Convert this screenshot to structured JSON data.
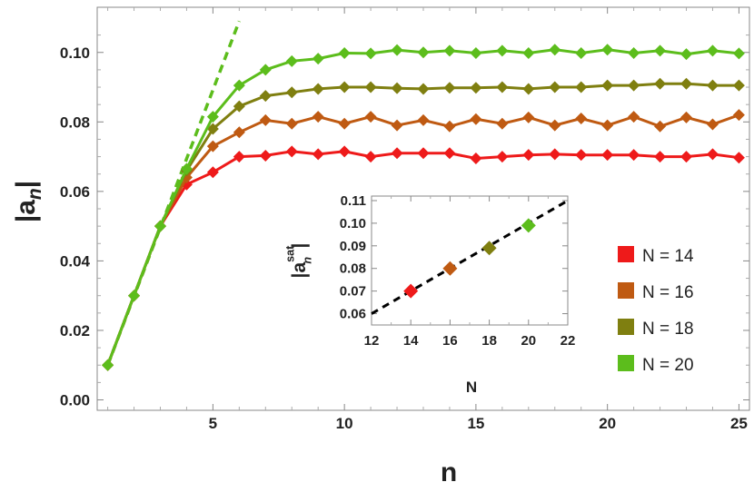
{
  "chart_data": {
    "type": "line",
    "main": {
      "xlabel": "n",
      "ylabel_base": "|a",
      "ylabel_sub": "n",
      "ylabel_close": "|",
      "xlim": [
        0.6,
        25.4
      ],
      "ylim": [
        -0.003,
        0.113
      ],
      "xticks": [
        5,
        10,
        15,
        20,
        25
      ],
      "yticks": [
        0.0,
        0.02,
        0.04,
        0.06,
        0.08,
        0.1
      ],
      "ytick_labels": [
        "0.00",
        "0.02",
        "0.04",
        "0.06",
        "0.08",
        "0.10"
      ],
      "series": [
        {
          "name": "N = 14",
          "color": "#ee1a1a",
          "x": [
            1,
            2,
            3,
            4,
            5,
            6,
            7,
            8,
            9,
            10,
            11,
            12,
            13,
            14,
            15,
            16,
            17,
            18,
            19,
            20,
            21,
            22,
            23,
            24,
            25
          ],
          "y": [
            0.01,
            0.03,
            0.05,
            0.062,
            0.0655,
            0.07,
            0.0703,
            0.0715,
            0.0707,
            0.0715,
            0.07,
            0.071,
            0.071,
            0.071,
            0.0695,
            0.07,
            0.0705,
            0.0707,
            0.0705,
            0.0705,
            0.0705,
            0.07,
            0.07,
            0.0707,
            0.0697
          ]
        },
        {
          "name": "N = 16",
          "color": "#bf5a12",
          "x": [
            1,
            2,
            3,
            4,
            5,
            6,
            7,
            8,
            9,
            10,
            11,
            12,
            13,
            14,
            15,
            16,
            17,
            18,
            19,
            20,
            21,
            22,
            23,
            24,
            25
          ],
          "y": [
            0.01,
            0.03,
            0.05,
            0.064,
            0.073,
            0.077,
            0.0805,
            0.0795,
            0.0815,
            0.0795,
            0.0815,
            0.079,
            0.0805,
            0.0787,
            0.0808,
            0.0795,
            0.0813,
            0.079,
            0.081,
            0.079,
            0.0815,
            0.0787,
            0.0813,
            0.0793,
            0.082
          ]
        },
        {
          "name": "N = 18",
          "color": "#7f7f10",
          "x": [
            1,
            2,
            3,
            4,
            5,
            6,
            7,
            8,
            9,
            10,
            11,
            12,
            13,
            14,
            15,
            16,
            17,
            18,
            19,
            20,
            21,
            22,
            23,
            24,
            25
          ],
          "y": [
            0.01,
            0.03,
            0.05,
            0.066,
            0.078,
            0.0845,
            0.0875,
            0.0885,
            0.0895,
            0.09,
            0.09,
            0.0897,
            0.0895,
            0.0898,
            0.0898,
            0.09,
            0.0895,
            0.09,
            0.09,
            0.0905,
            0.0905,
            0.091,
            0.091,
            0.0905,
            0.0905
          ]
        },
        {
          "name": "N = 20",
          "color": "#5cbd1c",
          "x": [
            1,
            2,
            3,
            4,
            5,
            6,
            7,
            8,
            9,
            10,
            11,
            12,
            13,
            14,
            15,
            16,
            17,
            18,
            19,
            20,
            21,
            22,
            23,
            24,
            25
          ],
          "y": [
            0.01,
            0.03,
            0.05,
            0.0665,
            0.0815,
            0.0905,
            0.095,
            0.0975,
            0.0982,
            0.0998,
            0.0997,
            0.1007,
            0.1,
            0.1005,
            0.0998,
            0.1005,
            0.0998,
            0.1008,
            0.0998,
            0.1008,
            0.0998,
            0.1005,
            0.0995,
            0.1005,
            0.0997
          ]
        }
      ],
      "guide_line": {
        "style": "dashed",
        "color": "#5cbd1c",
        "x": [
          1,
          6
        ],
        "y": [
          0.01,
          0.109
        ]
      }
    },
    "inset": {
      "xlabel": "N",
      "ylabel_base": "|a",
      "ylabel_sub": "n",
      "ylabel_sup": "sat",
      "ylabel_close": "|",
      "xlim": [
        12,
        22
      ],
      "ylim": [
        0.055,
        0.112
      ],
      "xticks": [
        12,
        14,
        16,
        18,
        20,
        22
      ],
      "yticks": [
        0.06,
        0.07,
        0.08,
        0.09,
        0.1,
        0.11
      ],
      "ytick_labels": [
        "0.06",
        "0.07",
        "0.08",
        "0.09",
        "0.10",
        "0.11"
      ],
      "points": [
        {
          "x": 14,
          "y": 0.07,
          "color": "#ee1a1a"
        },
        {
          "x": 16,
          "y": 0.08,
          "color": "#bf5a12"
        },
        {
          "x": 18,
          "y": 0.089,
          "color": "#7f7f10"
        },
        {
          "x": 20,
          "y": 0.099,
          "color": "#5cbd1c"
        }
      ],
      "fit_line": {
        "style": "dashed",
        "color": "#000000",
        "x": [
          12,
          22
        ],
        "y": [
          0.06,
          0.11
        ]
      }
    },
    "legend": {
      "placement": "right",
      "entries": [
        {
          "label": "N = 14",
          "color": "#ee1a1a"
        },
        {
          "label": "N = 16",
          "color": "#bf5a12"
        },
        {
          "label": "N = 18",
          "color": "#7f7f10"
        },
        {
          "label": "N = 20",
          "color": "#5cbd1c"
        }
      ]
    },
    "grid": false
  }
}
